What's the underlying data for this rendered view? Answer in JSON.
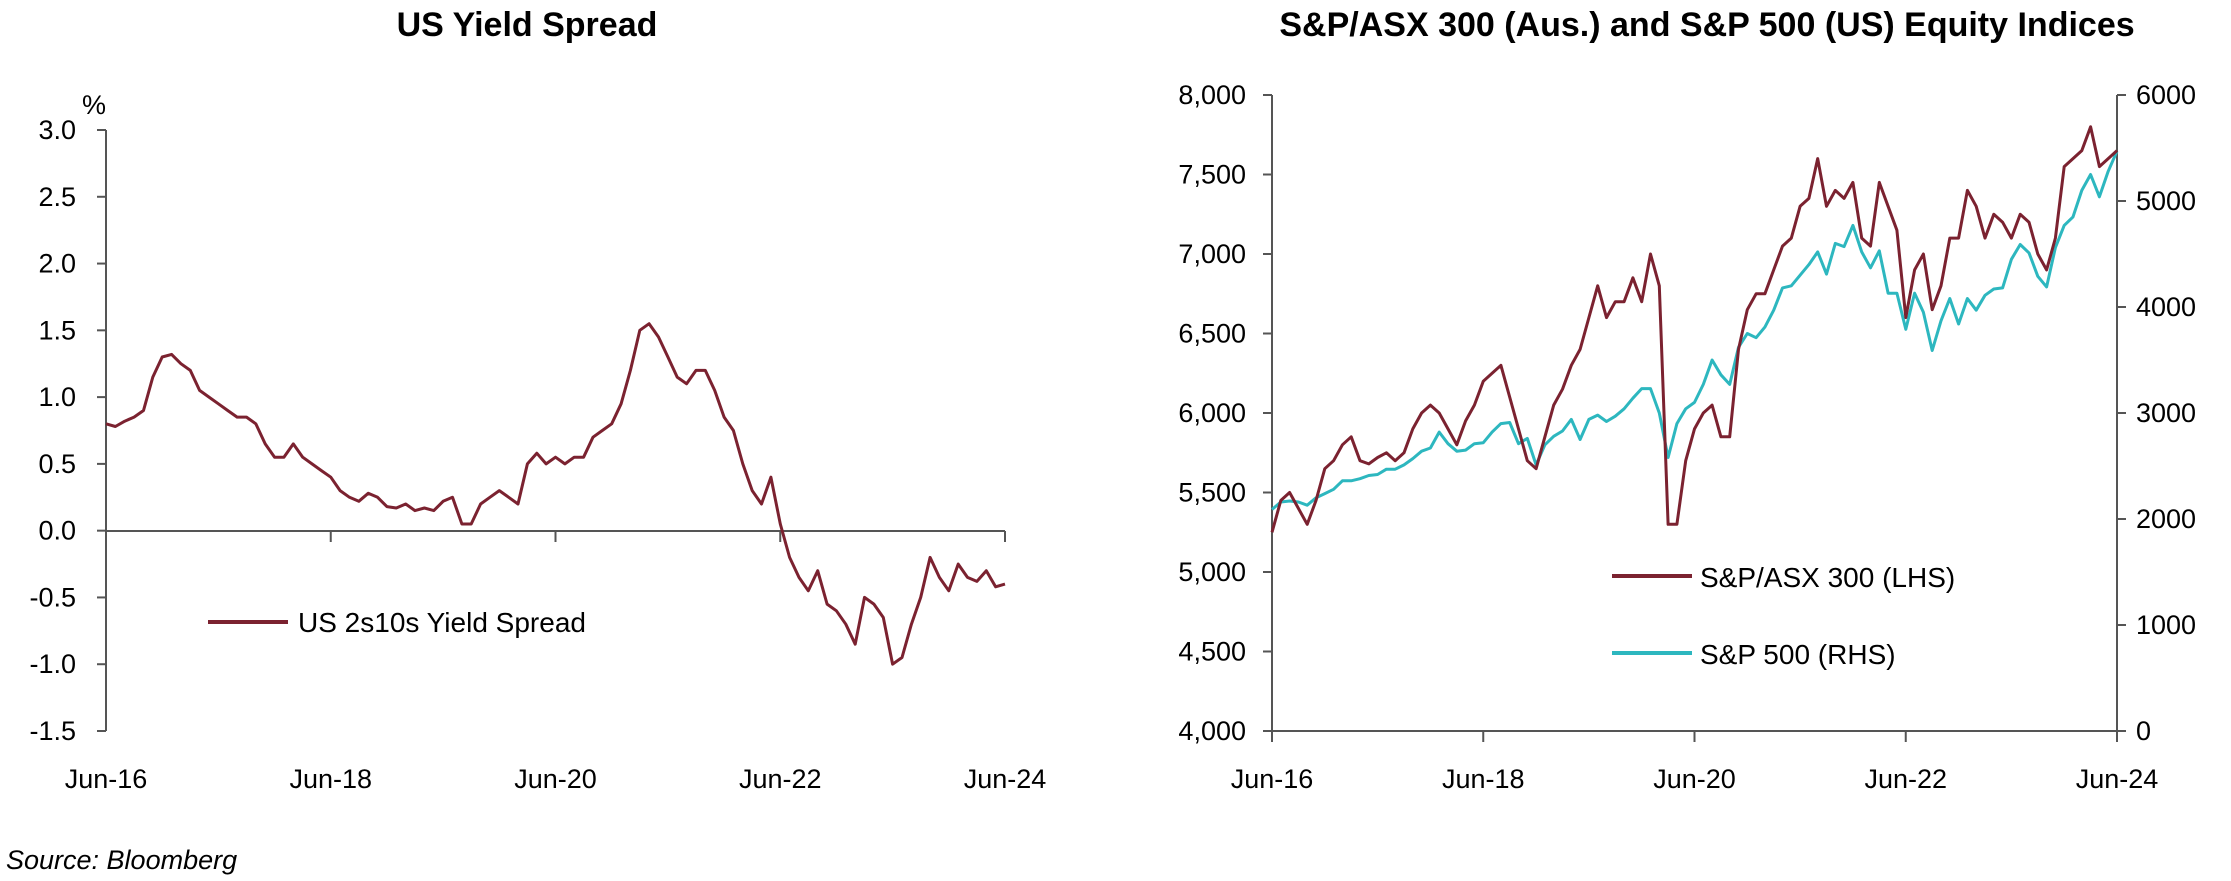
{
  "source": "Source: Bloomberg",
  "chart_data": [
    {
      "type": "line",
      "title": "US Yield Spread",
      "ylabel": "%",
      "ylim": [
        -1.5,
        3.0
      ],
      "ytick_labels": [
        "3.0",
        "2.5",
        "2.0",
        "1.5",
        "1.0",
        "0.5",
        "0.0",
        "-0.5",
        "-1.0",
        "-1.5"
      ],
      "xlim": [
        "2016-06",
        "2024-06"
      ],
      "xtick_labels": [
        "Jun-16",
        "Jun-18",
        "Jun-20",
        "Jun-22",
        "Jun-24"
      ],
      "legend": "inside-lower-left",
      "grid": false,
      "colors": {
        "series": "#7b2230"
      },
      "series": [
        {
          "name": "US 2s10s Yield Spread",
          "x": [
            "2016-06",
            "2016-07",
            "2016-08",
            "2016-09",
            "2016-10",
            "2016-11",
            "2016-12",
            "2017-01",
            "2017-02",
            "2017-03",
            "2017-04",
            "2017-05",
            "2017-06",
            "2017-07",
            "2017-08",
            "2017-09",
            "2017-10",
            "2017-11",
            "2017-12",
            "2018-01",
            "2018-02",
            "2018-03",
            "2018-04",
            "2018-05",
            "2018-06",
            "2018-07",
            "2018-08",
            "2018-09",
            "2018-10",
            "2018-11",
            "2018-12",
            "2019-01",
            "2019-02",
            "2019-03",
            "2019-04",
            "2019-05",
            "2019-06",
            "2019-07",
            "2019-08",
            "2019-09",
            "2019-10",
            "2019-11",
            "2019-12",
            "2020-01",
            "2020-02",
            "2020-03",
            "2020-04",
            "2020-05",
            "2020-06",
            "2020-07",
            "2020-08",
            "2020-09",
            "2020-10",
            "2020-11",
            "2020-12",
            "2021-01",
            "2021-02",
            "2021-03",
            "2021-04",
            "2021-05",
            "2021-06",
            "2021-07",
            "2021-08",
            "2021-09",
            "2021-10",
            "2021-11",
            "2021-12",
            "2022-01",
            "2022-02",
            "2022-03",
            "2022-04",
            "2022-05",
            "2022-06",
            "2022-07",
            "2022-08",
            "2022-09",
            "2022-10",
            "2022-11",
            "2022-12",
            "2023-01",
            "2023-02",
            "2023-03",
            "2023-04",
            "2023-05",
            "2023-06",
            "2023-07",
            "2023-08",
            "2023-09",
            "2023-10",
            "2023-11",
            "2023-12",
            "2024-01",
            "2024-02",
            "2024-03",
            "2024-04",
            "2024-05",
            "2024-06"
          ],
          "values": [
            0.8,
            0.78,
            0.82,
            0.85,
            0.9,
            1.15,
            1.3,
            1.32,
            1.25,
            1.2,
            1.05,
            1.0,
            0.95,
            0.9,
            0.85,
            0.85,
            0.8,
            0.65,
            0.55,
            0.55,
            0.65,
            0.55,
            0.5,
            0.45,
            0.4,
            0.3,
            0.25,
            0.22,
            0.28,
            0.25,
            0.18,
            0.17,
            0.2,
            0.15,
            0.17,
            0.15,
            0.22,
            0.25,
            0.05,
            0.05,
            0.2,
            0.25,
            0.3,
            0.25,
            0.2,
            0.5,
            0.58,
            0.5,
            0.55,
            0.5,
            0.55,
            0.55,
            0.7,
            0.75,
            0.8,
            0.95,
            1.2,
            1.5,
            1.55,
            1.45,
            1.3,
            1.15,
            1.1,
            1.2,
            1.2,
            1.05,
            0.85,
            0.75,
            0.5,
            0.3,
            0.2,
            0.4,
            0.05,
            -0.2,
            -0.35,
            -0.45,
            -0.3,
            -0.55,
            -0.6,
            -0.7,
            -0.85,
            -0.5,
            -0.55,
            -0.65,
            -1.0,
            -0.95,
            -0.7,
            -0.5,
            -0.2,
            -0.35,
            -0.45,
            -0.25,
            -0.35,
            -0.38,
            -0.3,
            -0.42,
            -0.4
          ]
        }
      ]
    },
    {
      "type": "line",
      "title": "S&P/ASX 300 (Aus.) and S&P 500 (US) Equity Indices",
      "ylim_left": [
        4000,
        8000
      ],
      "ylim_right": [
        0,
        6000
      ],
      "ytick_labels_left": [
        "8,000",
        "7,500",
        "7,000",
        "6,500",
        "6,000",
        "5,500",
        "5,000",
        "4,500",
        "4,000"
      ],
      "ytick_labels_right": [
        "6000",
        "5000",
        "4000",
        "3000",
        "2000",
        "1000",
        "0"
      ],
      "xlim": [
        "2016-06",
        "2024-06"
      ],
      "xtick_labels": [
        "Jun-16",
        "Jun-18",
        "Jun-20",
        "Jun-22",
        "Jun-24"
      ],
      "legend": "lower-right",
      "grid": false,
      "colors": {
        "asx": "#7b2230",
        "spx": "#2db7bf"
      },
      "series": [
        {
          "name": "S&P/ASX 300 (LHS)",
          "axis": "left",
          "x": [
            "2016-06",
            "2016-07",
            "2016-08",
            "2016-09",
            "2016-10",
            "2016-11",
            "2016-12",
            "2017-01",
            "2017-02",
            "2017-03",
            "2017-04",
            "2017-05",
            "2017-06",
            "2017-07",
            "2017-08",
            "2017-09",
            "2017-10",
            "2017-11",
            "2017-12",
            "2018-01",
            "2018-02",
            "2018-03",
            "2018-04",
            "2018-05",
            "2018-06",
            "2018-07",
            "2018-08",
            "2018-09",
            "2018-10",
            "2018-11",
            "2018-12",
            "2019-01",
            "2019-02",
            "2019-03",
            "2019-04",
            "2019-05",
            "2019-06",
            "2019-07",
            "2019-08",
            "2019-09",
            "2019-10",
            "2019-11",
            "2019-12",
            "2020-01",
            "2020-02",
            "2020-03",
            "2020-04",
            "2020-05",
            "2020-06",
            "2020-07",
            "2020-08",
            "2020-09",
            "2020-10",
            "2020-11",
            "2020-12",
            "2021-01",
            "2021-02",
            "2021-03",
            "2021-04",
            "2021-05",
            "2021-06",
            "2021-07",
            "2021-08",
            "2021-09",
            "2021-10",
            "2021-11",
            "2021-12",
            "2022-01",
            "2022-02",
            "2022-03",
            "2022-04",
            "2022-05",
            "2022-06",
            "2022-07",
            "2022-08",
            "2022-09",
            "2022-10",
            "2022-11",
            "2022-12",
            "2023-01",
            "2023-02",
            "2023-03",
            "2023-04",
            "2023-05",
            "2023-06",
            "2023-07",
            "2023-08",
            "2023-09",
            "2023-10",
            "2023-11",
            "2023-12",
            "2024-01",
            "2024-02",
            "2024-03",
            "2024-04",
            "2024-05",
            "2024-06"
          ],
          "values": [
            5250,
            5450,
            5500,
            5400,
            5300,
            5450,
            5650,
            5700,
            5800,
            5850,
            5700,
            5680,
            5720,
            5750,
            5700,
            5750,
            5900,
            6000,
            6050,
            6000,
            5900,
            5800,
            5950,
            6050,
            6200,
            6250,
            6300,
            6100,
            5900,
            5700,
            5650,
            5850,
            6050,
            6150,
            6300,
            6400,
            6600,
            6800,
            6600,
            6700,
            6700,
            6850,
            6700,
            7000,
            6800,
            5300,
            5300,
            5700,
            5900,
            6000,
            6050,
            5850,
            5850,
            6400,
            6650,
            6750,
            6750,
            6900,
            7050,
            7100,
            7300,
            7350,
            7600,
            7300,
            7400,
            7350,
            7450,
            7100,
            7050,
            7450,
            7300,
            7150,
            6600,
            6900,
            7000,
            6650,
            6800,
            7100,
            7100,
            7400,
            7300,
            7100,
            7250,
            7200,
            7100,
            7250,
            7200,
            7000,
            6900,
            7100,
            7550,
            7600,
            7650,
            7800,
            7550,
            7600,
            7650
          ]
        },
        {
          "name": "S&P 500 (RHS)",
          "axis": "right",
          "x": [
            "2016-06",
            "2016-07",
            "2016-08",
            "2016-09",
            "2016-10",
            "2016-11",
            "2016-12",
            "2017-01",
            "2017-02",
            "2017-03",
            "2017-04",
            "2017-05",
            "2017-06",
            "2017-07",
            "2017-08",
            "2017-09",
            "2017-10",
            "2017-11",
            "2017-12",
            "2018-01",
            "2018-02",
            "2018-03",
            "2018-04",
            "2018-05",
            "2018-06",
            "2018-07",
            "2018-08",
            "2018-09",
            "2018-10",
            "2018-11",
            "2018-12",
            "2019-01",
            "2019-02",
            "2019-03",
            "2019-04",
            "2019-05",
            "2019-06",
            "2019-07",
            "2019-08",
            "2019-09",
            "2019-10",
            "2019-11",
            "2019-12",
            "2020-01",
            "2020-02",
            "2020-03",
            "2020-04",
            "2020-05",
            "2020-06",
            "2020-07",
            "2020-08",
            "2020-09",
            "2020-10",
            "2020-11",
            "2020-12",
            "2021-01",
            "2021-02",
            "2021-03",
            "2021-04",
            "2021-05",
            "2021-06",
            "2021-07",
            "2021-08",
            "2021-09",
            "2021-10",
            "2021-11",
            "2021-12",
            "2022-01",
            "2022-02",
            "2022-03",
            "2022-04",
            "2022-05",
            "2022-06",
            "2022-07",
            "2022-08",
            "2022-09",
            "2022-10",
            "2022-11",
            "2022-12",
            "2023-01",
            "2023-02",
            "2023-03",
            "2023-04",
            "2023-05",
            "2023-06",
            "2023-07",
            "2023-08",
            "2023-09",
            "2023-10",
            "2023-11",
            "2023-12",
            "2024-01",
            "2024-02",
            "2024-03",
            "2024-04",
            "2024-05",
            "2024-06"
          ],
          "values": [
            2090,
            2160,
            2170,
            2160,
            2130,
            2200,
            2240,
            2280,
            2360,
            2360,
            2380,
            2410,
            2420,
            2470,
            2470,
            2510,
            2570,
            2640,
            2670,
            2820,
            2710,
            2640,
            2650,
            2710,
            2720,
            2820,
            2900,
            2910,
            2710,
            2760,
            2510,
            2700,
            2780,
            2830,
            2940,
            2750,
            2940,
            2980,
            2920,
            2970,
            3040,
            3140,
            3230,
            3230,
            3000,
            2580,
            2900,
            3040,
            3100,
            3270,
            3500,
            3360,
            3270,
            3620,
            3750,
            3710,
            3810,
            3970,
            4180,
            4200,
            4300,
            4400,
            4520,
            4310,
            4600,
            4570,
            4770,
            4520,
            4370,
            4530,
            4130,
            4130,
            3790,
            4130,
            3950,
            3590,
            3870,
            4080,
            3840,
            4080,
            3970,
            4110,
            4170,
            4180,
            4450,
            4590,
            4510,
            4290,
            4190,
            4560,
            4770,
            4850,
            5100,
            5250,
            5040,
            5280,
            5470
          ]
        }
      ]
    }
  ]
}
